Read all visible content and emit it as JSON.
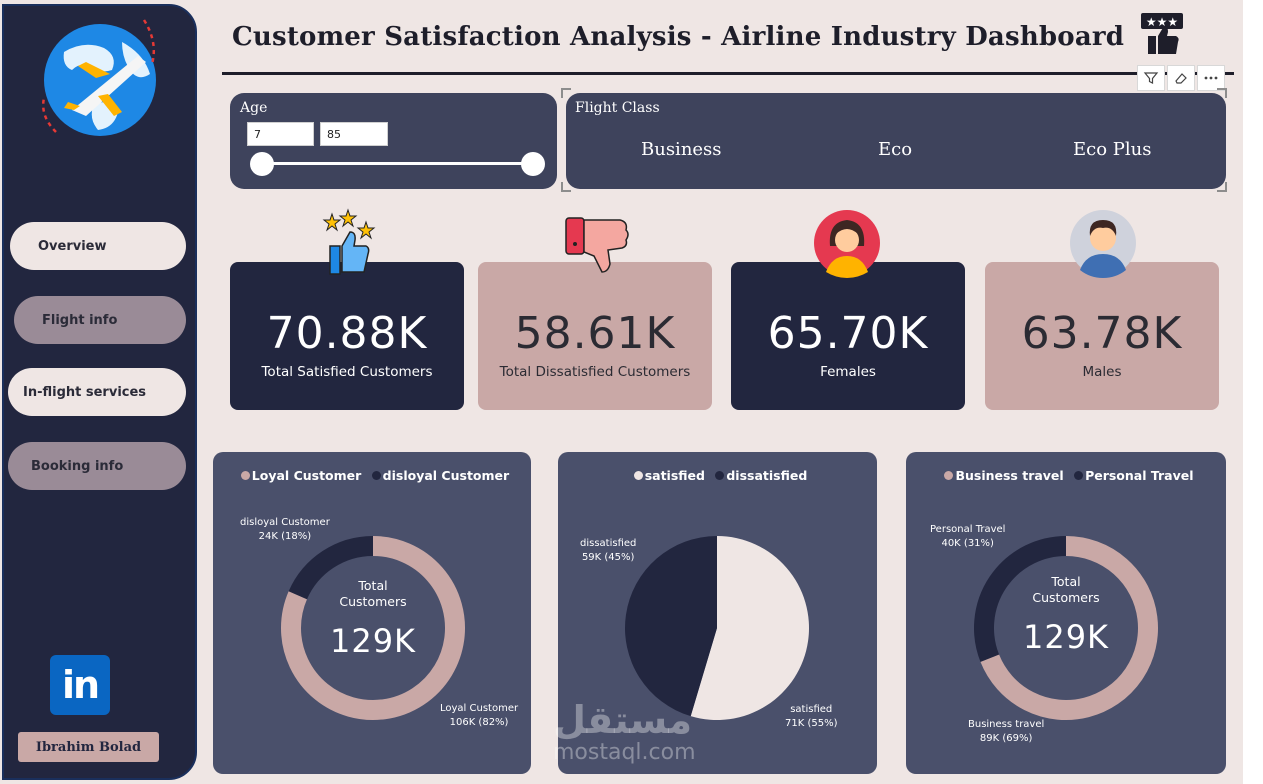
{
  "header": {
    "title": "Customer Satisfaction Analysis - Airline Industry Dashboard"
  },
  "sidebar": {
    "items": [
      {
        "label": "Overview"
      },
      {
        "label": "Flight info"
      },
      {
        "label": "In-flight services"
      },
      {
        "label": "Booking info"
      }
    ],
    "linkedin_glyph": "in",
    "author": "Ibrahim Bolad"
  },
  "slicers": {
    "age": {
      "label": "Age",
      "min": "7",
      "max": "85"
    },
    "flight_class": {
      "label": "Flight Class",
      "options": [
        "Business",
        "Eco",
        "Eco Plus"
      ]
    }
  },
  "kpis": [
    {
      "value": "70.88K",
      "label": "Total Satisfied Customers"
    },
    {
      "value": "58.61K",
      "label": "Total Dissatisfied Customers"
    },
    {
      "value": "65.70K",
      "label": "Females"
    },
    {
      "value": "63.78K",
      "label": "Males"
    }
  ],
  "donuts": {
    "loyalty": {
      "legend": [
        "Loyal Customer",
        "disloyal Customer"
      ],
      "center_title": [
        "Total",
        "Customers"
      ],
      "center_value": "129K",
      "labels": {
        "disloyal_name": "disloyal Customer",
        "disloyal_value": "24K (18%)",
        "loyal_name": "Loyal Customer",
        "loyal_value": "106K (82%)"
      }
    },
    "satisfaction": {
      "legend": [
        "satisfied",
        "dissatisfied"
      ],
      "labels": {
        "dissatisfied_name": "dissatisfied",
        "dissatisfied_value": "59K (45%)",
        "satisfied_name": "satisfied",
        "satisfied_value": "71K (55%)"
      }
    },
    "travel": {
      "legend": [
        "Business travel",
        "Personal Travel"
      ],
      "center_title": [
        "Total",
        "Customers"
      ],
      "center_value": "129K",
      "labels": {
        "personal_name": "Personal Travel",
        "personal_value": "40K (31%)",
        "business_name": "Business travel",
        "business_value": "89K (69%)"
      }
    }
  },
  "chart_data": [
    {
      "type": "pie",
      "categories": [
        "Loyal Customer",
        "disloyal Customer"
      ],
      "values": [
        106,
        24
      ],
      "percent": [
        82,
        18
      ]
    },
    {
      "type": "pie",
      "categories": [
        "satisfied",
        "dissatisfied"
      ],
      "values": [
        71,
        59
      ],
      "percent": [
        55,
        45
      ]
    },
    {
      "type": "pie",
      "categories": [
        "Business travel",
        "Personal Travel"
      ],
      "values": [
        89,
        40
      ],
      "percent": [
        69,
        31
      ]
    }
  ],
  "watermark": {
    "arabic": "مستقل",
    "latin": "mostaql.com"
  },
  "colors": {
    "navy": "#22263f",
    "rose": "#c9a8a6",
    "cream": "#efe6e4",
    "panel": "#4a506b",
    "linkedin": "#0a66c2"
  }
}
